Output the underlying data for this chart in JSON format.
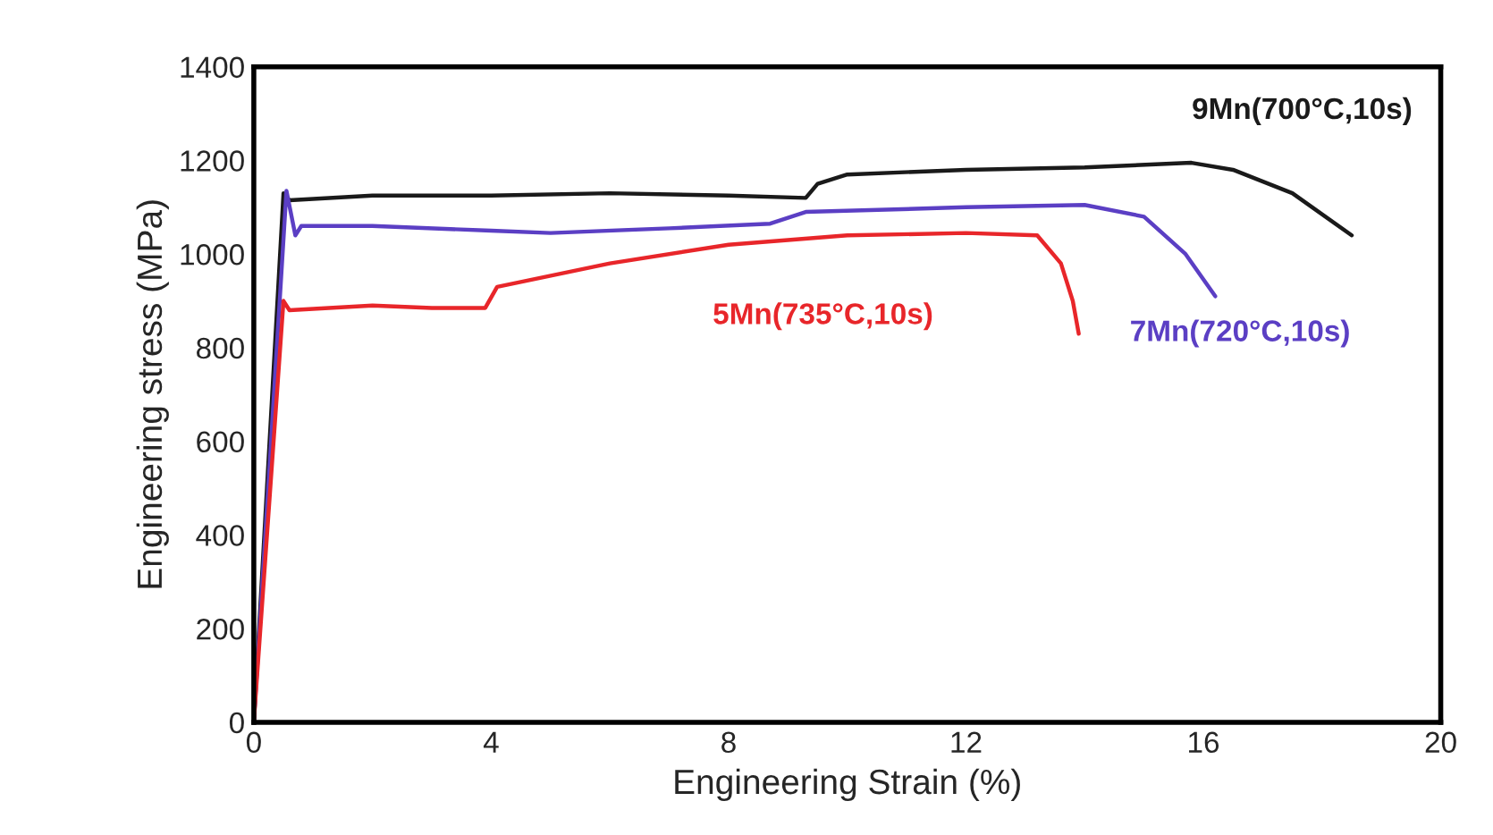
{
  "chart_data": {
    "type": "line",
    "xlabel": "Engineering Strain (%)",
    "ylabel": "Engineering stress (MPa)",
    "xlim": [
      0,
      20
    ],
    "xticks": [
      0,
      4,
      8,
      12,
      16,
      20
    ],
    "ylim": [
      0,
      1400
    ],
    "yticks": [
      0,
      200,
      400,
      600,
      800,
      1000,
      1200,
      1400
    ],
    "grid": false,
    "legend": false,
    "marker": "none",
    "line_style": "solid",
    "series": [
      {
        "name": "9Mn(700°C,10s)",
        "color": "#1a1a1a",
        "x": [
          0,
          0.5,
          0.6,
          2,
          4,
          6,
          8,
          9.3,
          9.5,
          10,
          12,
          14,
          15.8,
          16.5,
          17.5,
          18.5
        ],
        "values": [
          0,
          1130,
          1115,
          1125,
          1125,
          1130,
          1125,
          1120,
          1150,
          1170,
          1180,
          1185,
          1195,
          1180,
          1130,
          1040
        ]
      },
      {
        "name": "7Mn(720°C,10s)",
        "color": "#5b3fc4",
        "x": [
          0,
          0.55,
          0.7,
          0.8,
          2,
          4,
          5,
          7,
          8.7,
          9.3,
          12,
          14,
          15,
          15.7,
          16.2
        ],
        "values": [
          0,
          1135,
          1040,
          1060,
          1060,
          1050,
          1045,
          1055,
          1065,
          1090,
          1100,
          1105,
          1080,
          1000,
          910
        ]
      },
      {
        "name": "5Mn(735°C,10s)",
        "color": "#e8262a",
        "x": [
          0,
          0.5,
          0.6,
          2,
          3,
          3.9,
          4.1,
          6,
          8,
          10,
          12,
          13.2,
          13.6,
          13.8,
          13.9
        ],
        "values": [
          0,
          900,
          880,
          890,
          885,
          885,
          930,
          980,
          1020,
          1040,
          1045,
          1040,
          980,
          900,
          830
        ]
      }
    ]
  }
}
